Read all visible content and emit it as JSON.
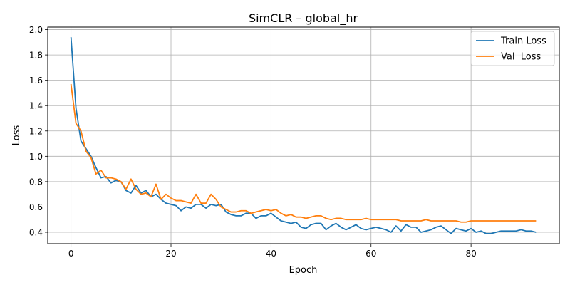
{
  "chart_data": {
    "type": "line",
    "title": "SimCLR – global_hr",
    "xlabel": "Epoch",
    "ylabel": "Loss",
    "xlim": [
      -4.65,
      97.65
    ],
    "ylim": [
      0.31,
      2.02
    ],
    "xticks": [
      0,
      20,
      40,
      60,
      80
    ],
    "yticks": [
      0.4,
      0.6,
      0.8,
      1.0,
      1.2,
      1.4,
      1.6,
      1.8,
      2.0
    ],
    "ytick_labels": [
      "0.4",
      "0.6",
      "0.8",
      "1.0",
      "1.2",
      "1.4",
      "1.6",
      "1.8",
      "2.0"
    ],
    "grid": true,
    "legend_position": "top-right",
    "series": [
      {
        "name": "Train Loss",
        "color": "#1f77b4",
        "values": [
          1.94,
          1.38,
          1.12,
          1.06,
          1.0,
          0.91,
          0.83,
          0.84,
          0.79,
          0.81,
          0.8,
          0.73,
          0.71,
          0.77,
          0.71,
          0.73,
          0.68,
          0.7,
          0.66,
          0.63,
          0.62,
          0.61,
          0.57,
          0.6,
          0.59,
          0.62,
          0.62,
          0.59,
          0.62,
          0.61,
          0.62,
          0.56,
          0.54,
          0.53,
          0.53,
          0.55,
          0.55,
          0.51,
          0.53,
          0.53,
          0.55,
          0.52,
          0.49,
          0.48,
          0.47,
          0.48,
          0.44,
          0.43,
          0.46,
          0.47,
          0.47,
          0.42,
          0.45,
          0.47,
          0.44,
          0.42,
          0.44,
          0.46,
          0.43,
          0.42,
          0.43,
          0.44,
          0.43,
          0.42,
          0.4,
          0.45,
          0.41,
          0.46,
          0.44,
          0.44,
          0.4,
          0.41,
          0.42,
          0.44,
          0.45,
          0.42,
          0.39,
          0.43,
          0.42,
          0.41,
          0.43,
          0.4,
          0.41,
          0.39,
          0.39,
          0.4,
          0.41,
          0.41,
          0.41,
          0.41,
          0.42,
          0.41,
          0.41,
          0.4
        ]
      },
      {
        "name": "Val  Loss",
        "color": "#ff7f0e",
        "values": [
          1.57,
          1.26,
          1.2,
          1.04,
          0.99,
          0.86,
          0.89,
          0.83,
          0.83,
          0.82,
          0.8,
          0.74,
          0.82,
          0.74,
          0.7,
          0.71,
          0.68,
          0.78,
          0.66,
          0.7,
          0.67,
          0.65,
          0.65,
          0.64,
          0.63,
          0.7,
          0.63,
          0.63,
          0.7,
          0.66,
          0.6,
          0.58,
          0.56,
          0.56,
          0.57,
          0.57,
          0.55,
          0.56,
          0.57,
          0.58,
          0.57,
          0.58,
          0.55,
          0.53,
          0.54,
          0.52,
          0.52,
          0.51,
          0.52,
          0.53,
          0.53,
          0.51,
          0.5,
          0.51,
          0.51,
          0.5,
          0.5,
          0.5,
          0.5,
          0.51,
          0.5,
          0.5,
          0.5,
          0.5,
          0.5,
          0.5,
          0.49,
          0.49,
          0.49,
          0.49,
          0.49,
          0.5,
          0.49,
          0.49,
          0.49,
          0.49,
          0.49,
          0.49,
          0.48,
          0.48,
          0.49,
          0.49,
          0.49,
          0.49,
          0.49,
          0.49,
          0.49,
          0.49,
          0.49,
          0.49,
          0.49,
          0.49,
          0.49,
          0.49
        ]
      }
    ]
  }
}
